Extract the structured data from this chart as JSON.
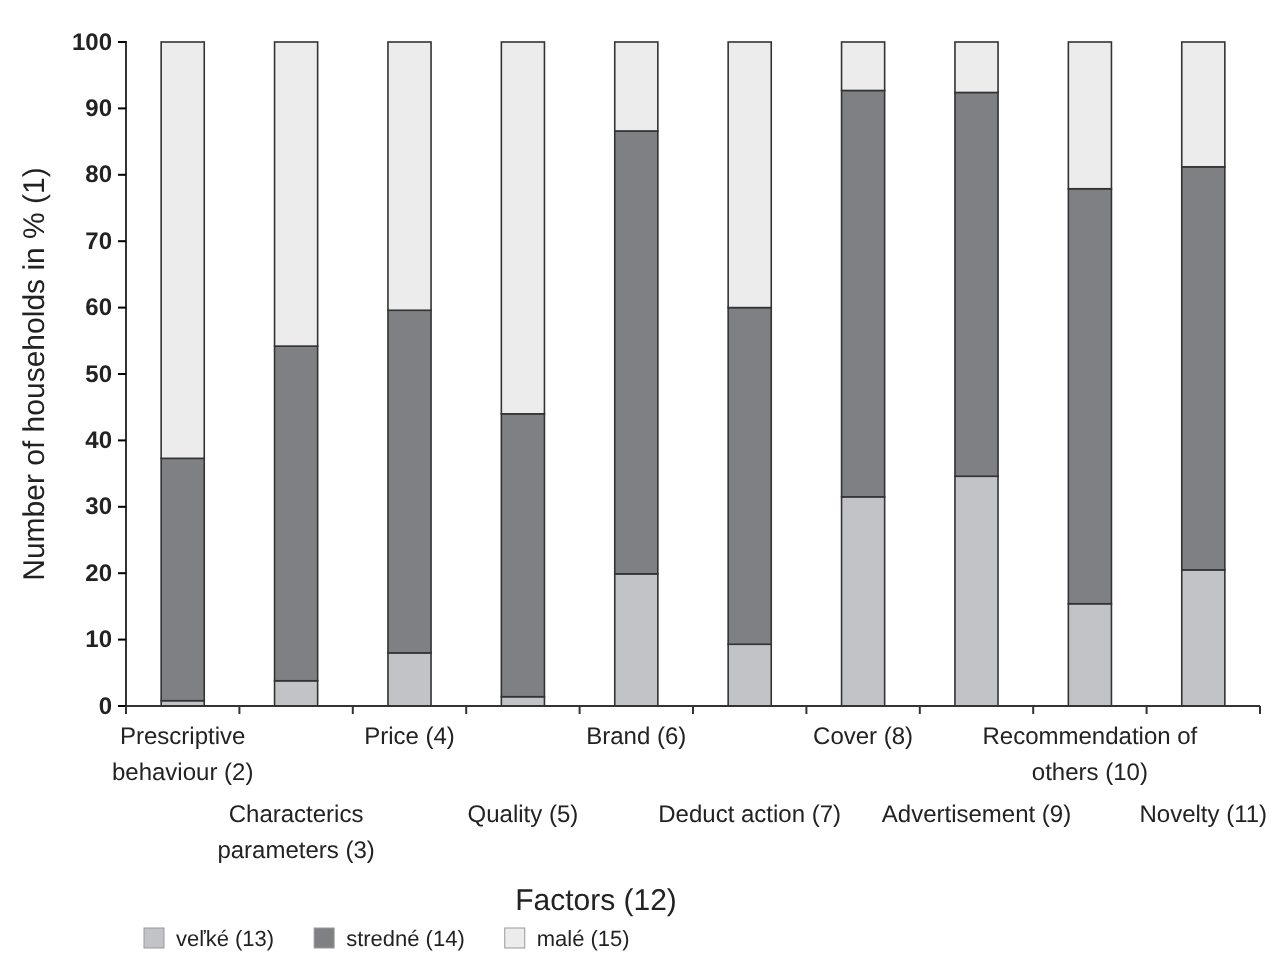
{
  "chart_data": {
    "type": "bar",
    "stacked": true,
    "xlabel": "Factors (12)",
    "ylabel": "Number of households in % (1)",
    "categories": [
      "Prescriptive behaviour (2)",
      "Characterics parameters (3)",
      "Price (4)",
      "Quality (5)",
      "Brand (6)",
      "Deduct action (7)",
      "Cover (8)",
      "Advertisement (9)",
      "Recommendation of others (10)",
      "Novelty (11)"
    ],
    "series": [
      {
        "name": "veľké (13)",
        "color": "#c2c3c6",
        "values": [
          0.8,
          3.8,
          8.0,
          1.4,
          19.9,
          9.3,
          31.5,
          34.6,
          15.4,
          20.5
        ]
      },
      {
        "name": "stredné (14)",
        "color": "#7f8083",
        "values": [
          36.5,
          50.4,
          51.6,
          42.6,
          66.7,
          50.7,
          61.2,
          57.8,
          62.5,
          60.7
        ]
      },
      {
        "name": "malé (15)",
        "color": "#ececec",
        "values": [
          62.7,
          45.8,
          40.4,
          56.0,
          13.4,
          40.0,
          7.3,
          7.6,
          22.1,
          18.8
        ]
      }
    ],
    "ylim": [
      0,
      100
    ],
    "yticks": [
      0,
      10,
      20,
      30,
      40,
      50,
      60,
      70,
      80,
      90,
      100
    ],
    "grid": false,
    "legend": "bottom"
  }
}
